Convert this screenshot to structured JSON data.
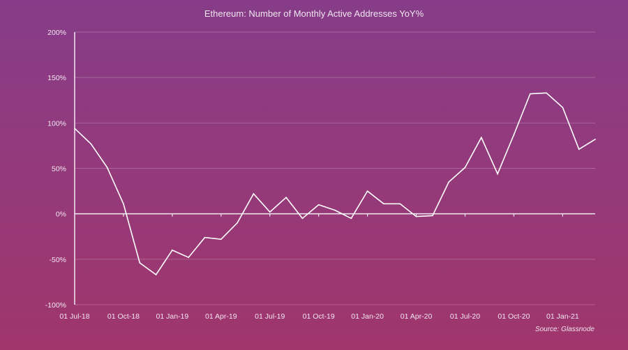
{
  "chart_data": {
    "type": "line",
    "title": "Ethereum: Number of Monthly Active Addresses YoY%",
    "source": "Source: Glassnode",
    "xlabel": "",
    "ylabel": "",
    "ylim": [
      -100,
      200
    ],
    "y_ticks": [
      "200%",
      "150%",
      "100%",
      "50%",
      "0%",
      "-50%",
      "-100%"
    ],
    "y_tick_values": [
      200,
      150,
      100,
      50,
      0,
      -50,
      -100
    ],
    "x_ticks": [
      "01 Jul-18",
      "01 Oct-18",
      "01 Jan-19",
      "01 Apr-19",
      "01 Jul-19",
      "01 Oct-19",
      "01 Jan-20",
      "01 Apr-20",
      "01 Jul-20",
      "01 Oct-20",
      "01 Jan-21"
    ],
    "grid": true,
    "line_color": "#ffffff",
    "x": [
      "2018-07",
      "2018-08",
      "2018-09",
      "2018-10",
      "2018-11",
      "2018-12",
      "2019-01",
      "2019-02",
      "2019-03",
      "2019-04",
      "2019-05",
      "2019-06",
      "2019-07",
      "2019-08",
      "2019-09",
      "2019-10",
      "2019-11",
      "2019-12",
      "2020-01",
      "2020-02",
      "2020-03",
      "2020-04",
      "2020-05",
      "2020-06",
      "2020-07",
      "2020-08",
      "2020-09",
      "2020-10",
      "2020-11",
      "2020-12",
      "2021-01",
      "2021-02",
      "2021-03"
    ],
    "values": [
      94,
      77,
      51,
      11,
      -54,
      -67,
      -40,
      -48,
      -26,
      -28,
      -10,
      22,
      2,
      18,
      -5,
      10,
      4,
      -5,
      25,
      11,
      11,
      -3,
      -2,
      35,
      51,
      84,
      44,
      87,
      132,
      133,
      117,
      71,
      82
    ]
  }
}
